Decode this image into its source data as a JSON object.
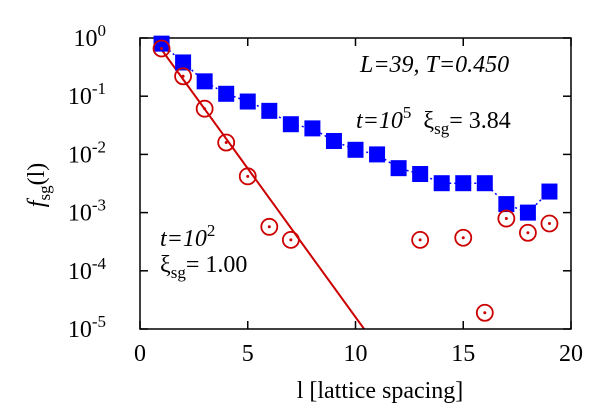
{
  "chart_data": {
    "type": "scatter",
    "log_y": true,
    "xlim": [
      0,
      20
    ],
    "xticks": [
      0,
      5,
      10,
      15,
      20
    ],
    "ylim": [
      1e-05,
      1
    ],
    "yticks": [
      {
        "value": 1e-05,
        "label": "10",
        "sup": "-5"
      },
      {
        "value": 0.0001,
        "label": "10",
        "sup": "-4"
      },
      {
        "value": 0.001,
        "label": "10",
        "sup": "-3"
      },
      {
        "value": 0.01,
        "label": "10",
        "sup": "-2"
      },
      {
        "value": 0.1,
        "label": "10",
        "sup": "-1"
      },
      {
        "value": 1,
        "label": "10",
        "sup": "0"
      }
    ],
    "x_label": "l [lattice spacing]",
    "y_label": {
      "f": "f",
      "sub": "sg",
      "arg": "(l)"
    },
    "annotations": {
      "info": "L=39, T=0.450",
      "long": {
        "t": "t=10",
        "t_exp": "5",
        "xi": "ξ",
        "xi_sub": "sg",
        "xi_value": "= 3.84"
      },
      "short": {
        "t": "t=10",
        "t_exp": "2",
        "xi": "ξ",
        "xi_sub": "sg",
        "xi_value": "= 1.00"
      }
    },
    "series": [
      {
        "marker": "square",
        "line": "dotted",
        "color": "#0000ff",
        "x": [
          1,
          2,
          3,
          4,
          5,
          6,
          7,
          8,
          9,
          10,
          11,
          12,
          13,
          14,
          15,
          16,
          17,
          18,
          19
        ],
        "values": [
          0.8,
          0.38,
          0.18,
          0.11,
          0.081,
          0.056,
          0.033,
          0.028,
          0.017,
          0.012,
          0.01,
          0.0058,
          0.0046,
          0.0032,
          0.0032,
          0.0032,
          0.0014,
          0.001,
          0.0023
        ]
      },
      {
        "marker": "circle",
        "line": "none",
        "color": "#cc0000",
        "x": [
          1,
          2,
          3,
          4,
          5,
          6,
          7,
          8,
          9,
          10,
          11,
          12,
          13,
          14,
          15,
          16,
          17,
          18,
          19
        ],
        "values": [
          0.66,
          0.22,
          0.061,
          0.016,
          0.0042,
          0.00057,
          0.00034,
          null,
          null,
          null,
          null,
          null,
          0.00034,
          null,
          0.00037,
          1.9e-05,
          0.00079,
          0.00045,
          0.00065
        ]
      },
      {
        "marker": "none",
        "line": "solid",
        "color": "#cc0000",
        "x": [
          0.8,
          10.4
        ],
        "values": [
          0.8,
          1e-05
        ]
      }
    ]
  }
}
